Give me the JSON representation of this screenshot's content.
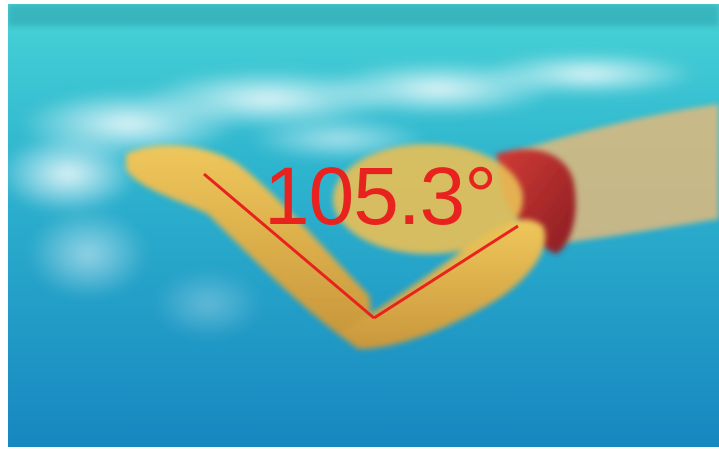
{
  "measurement": {
    "angle_text": "105.3°",
    "angle_value_degrees": 105.3,
    "annotation_color": "#e8221e"
  },
  "scene": {
    "water_top_color": "#34c9d2",
    "water_bottom_color": "#1a8fc4",
    "skin_color": "#e6b84a",
    "swimsuit_color": "#b4262a"
  }
}
